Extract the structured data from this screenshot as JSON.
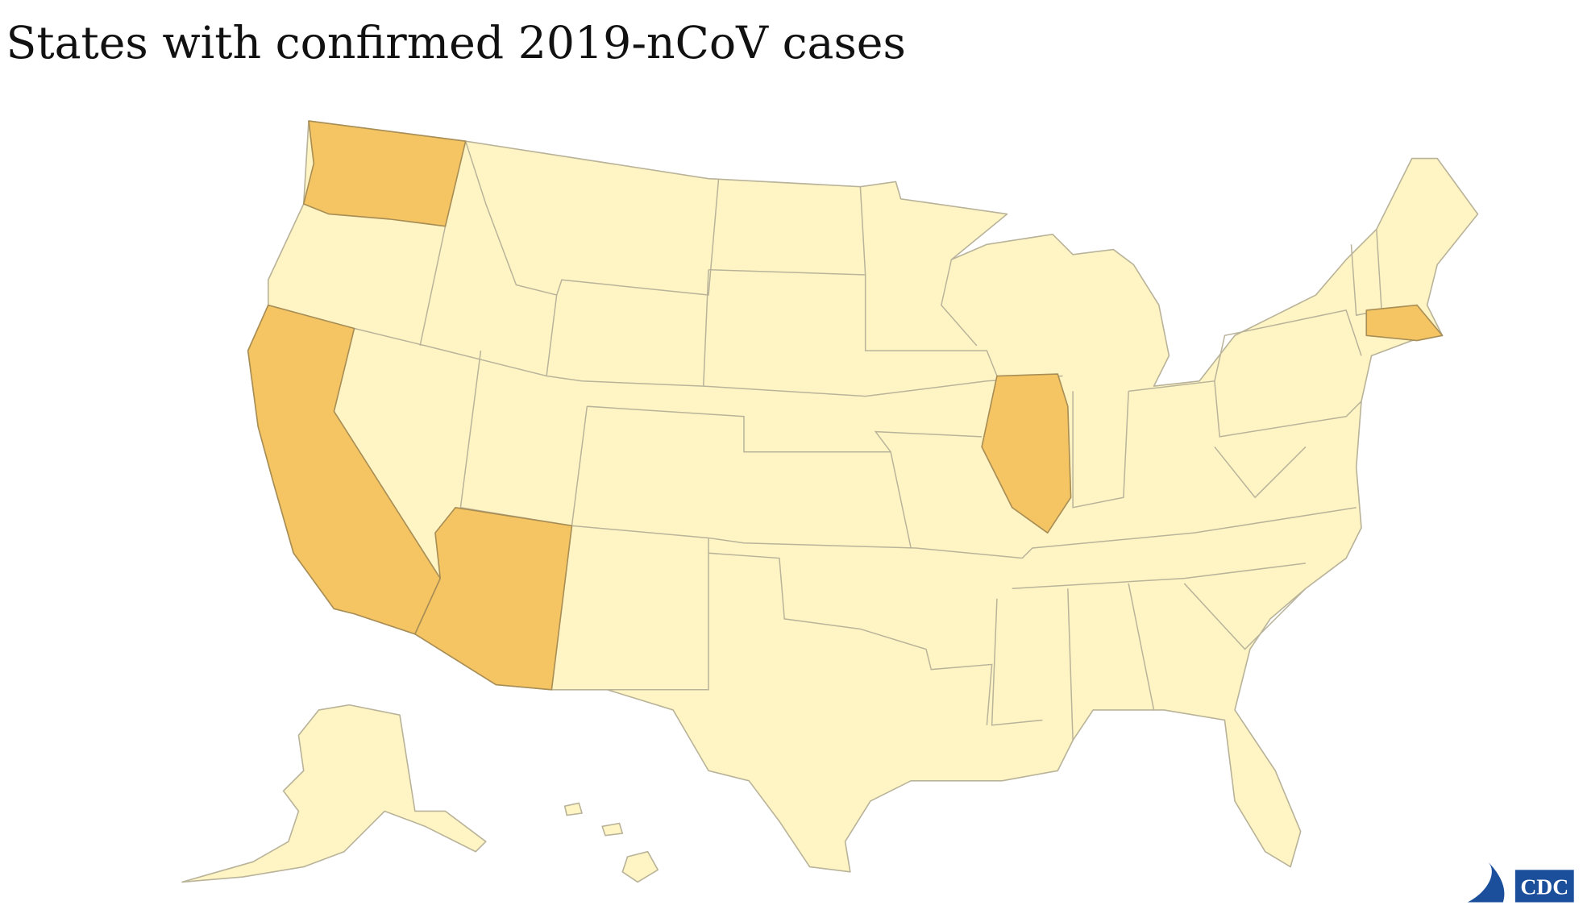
{
  "title": "States with confirmed 2019-nCoV cases",
  "logo": "CDC"
}
